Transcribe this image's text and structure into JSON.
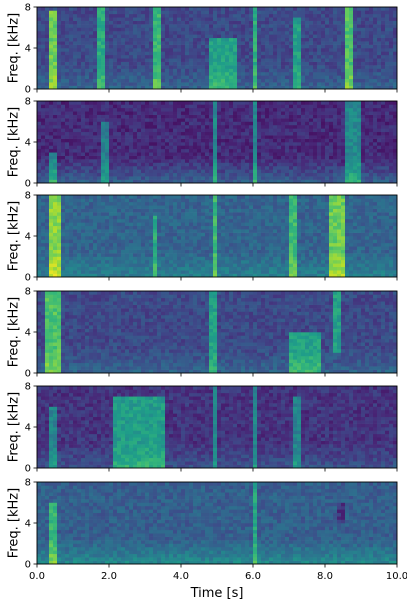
{
  "chart_data": {
    "type": "heatmap",
    "subtype": "spectrogram-stack",
    "colormap": "viridis",
    "xlabel": "Time [s]",
    "ylabel": "Freq. [kHz]",
    "xlim": [
      0,
      10
    ],
    "ylim": [
      0,
      8
    ],
    "xticks": [
      0,
      2,
      4,
      6,
      8,
      10
    ],
    "xtick_labels": [
      "0.0",
      "2.0",
      "4.0",
      "6.0",
      "8.0",
      "10.0"
    ],
    "yticks": [
      0,
      4,
      8
    ],
    "ytick_labels": [
      "0",
      "4",
      "8"
    ],
    "panels": [
      {
        "base_intensity": 0.22,
        "low_freq_boost": 0.1,
        "events": [
          {
            "t0": 0.3,
            "t1": 0.6,
            "f0": 0,
            "f1": 7.5,
            "intensity": 0.55
          },
          {
            "t0": 1.7,
            "t1": 1.9,
            "f0": 0,
            "f1": 8,
            "intensity": 0.4
          },
          {
            "t0": 3.2,
            "t1": 3.4,
            "f0": 0,
            "f1": 8,
            "intensity": 0.45
          },
          {
            "t0": 4.8,
            "t1": 5.6,
            "f0": 0,
            "f1": 5,
            "intensity": 0.35
          },
          {
            "t0": 6.0,
            "t1": 6.15,
            "f0": 0,
            "f1": 8,
            "intensity": 0.4
          },
          {
            "t0": 7.1,
            "t1": 7.3,
            "f0": 0,
            "f1": 7,
            "intensity": 0.35
          },
          {
            "t0": 8.6,
            "t1": 8.8,
            "f0": 0,
            "f1": 8,
            "intensity": 0.5
          }
        ]
      },
      {
        "base_intensity": 0.12,
        "low_freq_boost": 0.18,
        "events": [
          {
            "t0": 0.3,
            "t1": 0.5,
            "f0": 0,
            "f1": 3,
            "intensity": 0.35
          },
          {
            "t0": 1.8,
            "t1": 1.95,
            "f0": 0,
            "f1": 6,
            "intensity": 0.3
          },
          {
            "t0": 4.9,
            "t1": 5.0,
            "f0": 0,
            "f1": 8,
            "intensity": 0.35
          },
          {
            "t0": 6.0,
            "t1": 6.1,
            "f0": 0,
            "f1": 8,
            "intensity": 0.35
          },
          {
            "t0": 8.6,
            "t1": 9.0,
            "f0": 0,
            "f1": 8,
            "intensity": 0.35
          }
        ]
      },
      {
        "base_intensity": 0.32,
        "low_freq_boost": 0.12,
        "events": [
          {
            "t0": 0.3,
            "t1": 0.7,
            "f0": 0,
            "f1": 8,
            "intensity": 0.5
          },
          {
            "t0": 3.2,
            "t1": 3.3,
            "f0": 0,
            "f1": 6,
            "intensity": 0.3
          },
          {
            "t0": 4.9,
            "t1": 5.0,
            "f0": 0,
            "f1": 8,
            "intensity": 0.35
          },
          {
            "t0": 7.0,
            "t1": 7.2,
            "f0": 0,
            "f1": 8,
            "intensity": 0.35
          },
          {
            "t0": 8.1,
            "t1": 8.5,
            "f0": 0,
            "f1": 8,
            "intensity": 0.45
          }
        ]
      },
      {
        "base_intensity": 0.22,
        "low_freq_boost": 0.1,
        "events": [
          {
            "t0": 0.2,
            "t1": 0.7,
            "f0": 0,
            "f1": 8,
            "intensity": 0.5
          },
          {
            "t0": 4.8,
            "t1": 5.0,
            "f0": 0,
            "f1": 8,
            "intensity": 0.35
          },
          {
            "t0": 7.0,
            "t1": 7.9,
            "f0": 0,
            "f1": 4,
            "intensity": 0.35
          },
          {
            "t0": 8.2,
            "t1": 8.4,
            "f0": 2,
            "f1": 8,
            "intensity": 0.35
          }
        ]
      },
      {
        "base_intensity": 0.15,
        "low_freq_boost": 0.1,
        "events": [
          {
            "t0": 0.3,
            "t1": 0.5,
            "f0": 0,
            "f1": 6,
            "intensity": 0.3
          },
          {
            "t0": 2.1,
            "t1": 3.6,
            "f0": 0,
            "f1": 7,
            "intensity": 0.4
          },
          {
            "t0": 4.9,
            "t1": 5.0,
            "f0": 0,
            "f1": 8,
            "intensity": 0.3
          },
          {
            "t0": 6.0,
            "t1": 6.15,
            "f0": 0,
            "f1": 8,
            "intensity": 0.3
          },
          {
            "t0": 7.1,
            "t1": 7.3,
            "f0": 0,
            "f1": 7,
            "intensity": 0.3
          }
        ]
      },
      {
        "base_intensity": 0.3,
        "low_freq_boost": 0.18,
        "events": [
          {
            "t0": 0.3,
            "t1": 0.6,
            "f0": 0,
            "f1": 6,
            "intensity": 0.35
          },
          {
            "t0": 6.0,
            "t1": 6.15,
            "f0": 0,
            "f1": 8,
            "intensity": 0.3
          },
          {
            "t0": 8.3,
            "t1": 8.6,
            "f0": 4,
            "f1": 6,
            "intensity": -0.15
          }
        ]
      }
    ]
  }
}
